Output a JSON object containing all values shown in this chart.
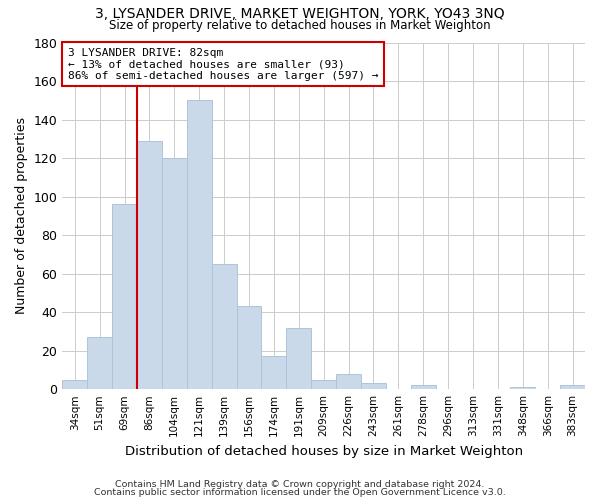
{
  "title": "3, LYSANDER DRIVE, MARKET WEIGHTON, YORK, YO43 3NQ",
  "subtitle": "Size of property relative to detached houses in Market Weighton",
  "xlabel": "Distribution of detached houses by size in Market Weighton",
  "ylabel": "Number of detached properties",
  "bar_color": "#c9d9ea",
  "bar_edge_color": "#b0c4d8",
  "background_color": "#ffffff",
  "grid_color": "#cccccc",
  "bin_labels": [
    "34sqm",
    "51sqm",
    "69sqm",
    "86sqm",
    "104sqm",
    "121sqm",
    "139sqm",
    "156sqm",
    "174sqm",
    "191sqm",
    "209sqm",
    "226sqm",
    "243sqm",
    "261sqm",
    "278sqm",
    "296sqm",
    "313sqm",
    "331sqm",
    "348sqm",
    "366sqm",
    "383sqm"
  ],
  "bar_heights": [
    5,
    27,
    96,
    129,
    120,
    150,
    65,
    43,
    17,
    32,
    5,
    8,
    3,
    0,
    2,
    0,
    0,
    0,
    1,
    0,
    2
  ],
  "vline_x": 2.5,
  "vline_color": "#cc0000",
  "ylim": [
    0,
    180
  ],
  "yticks": [
    0,
    20,
    40,
    60,
    80,
    100,
    120,
    140,
    160,
    180
  ],
  "annotation_text": "3 LYSANDER DRIVE: 82sqm\n← 13% of detached houses are smaller (93)\n86% of semi-detached houses are larger (597) →",
  "annotation_box_color": "#ffffff",
  "annotation_box_edge_color": "#cc0000",
  "footnote1": "Contains HM Land Registry data © Crown copyright and database right 2024.",
  "footnote2": "Contains public sector information licensed under the Open Government Licence v3.0."
}
